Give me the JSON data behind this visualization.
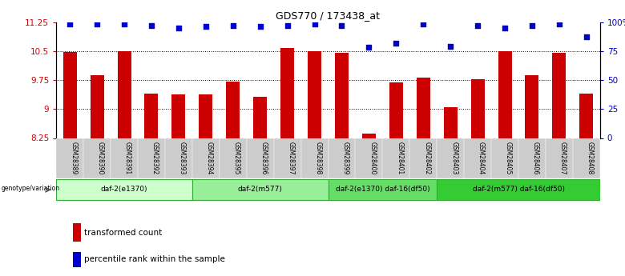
{
  "title": "GDS770 / 173438_at",
  "samples": [
    "GSM28389",
    "GSM28390",
    "GSM28391",
    "GSM28392",
    "GSM28393",
    "GSM28394",
    "GSM28395",
    "GSM28396",
    "GSM28397",
    "GSM28398",
    "GSM28399",
    "GSM28400",
    "GSM28401",
    "GSM28402",
    "GSM28403",
    "GSM28404",
    "GSM28405",
    "GSM28406",
    "GSM28407",
    "GSM28408"
  ],
  "transformed_counts": [
    10.47,
    9.87,
    10.5,
    9.4,
    9.37,
    9.37,
    9.7,
    9.32,
    10.57,
    10.5,
    10.45,
    8.37,
    9.68,
    9.81,
    9.05,
    9.78,
    10.5,
    9.87,
    10.45,
    9.4
  ],
  "percentile_ranks": [
    98,
    98,
    98,
    97,
    95,
    96,
    97,
    96,
    97,
    98,
    97,
    78,
    82,
    98,
    79,
    97,
    95,
    97,
    98,
    87
  ],
  "ylim_left": [
    8.25,
    11.25
  ],
  "ylim_right": [
    0,
    100
  ],
  "yticks_left": [
    8.25,
    9.0,
    9.75,
    10.5,
    11.25
  ],
  "yticks_right": [
    0,
    25,
    50,
    75,
    100
  ],
  "ytick_labels_left": [
    "8.25",
    "9",
    "9.75",
    "10.5",
    "11.25"
  ],
  "ytick_labels_right": [
    "0",
    "25",
    "50",
    "75",
    "100%"
  ],
  "groups": [
    {
      "label": "daf-2(e1370)",
      "start": 0,
      "end": 5,
      "color": "#ccffcc"
    },
    {
      "label": "daf-2(m577)",
      "start": 5,
      "end": 10,
      "color": "#99ee99"
    },
    {
      "label": "daf-2(e1370) daf-16(df50)",
      "start": 10,
      "end": 14,
      "color": "#66dd66"
    },
    {
      "label": "daf-2(m577) daf-16(df50)",
      "start": 14,
      "end": 20,
      "color": "#33cc33"
    }
  ],
  "bar_color": "#cc0000",
  "dot_color": "#0000cc",
  "bar_width": 0.5,
  "background_color": "#ffffff",
  "label_color_left": "#cc0000",
  "label_color_right": "#0000cc",
  "genotype_label": "genotype/variation",
  "legend_bar": "transformed count",
  "legend_dot": "percentile rank within the sample"
}
